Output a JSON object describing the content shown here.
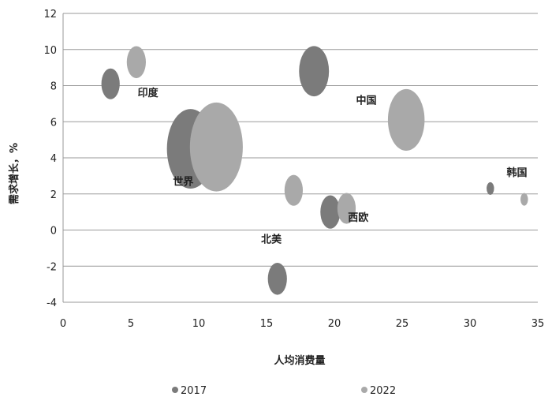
{
  "chart_data": {
    "type": "bubble",
    "xlabel": "人均消费量",
    "ylabel": "需求增长，%",
    "xlim": [
      0,
      35
    ],
    "ylim": [
      -4,
      12
    ],
    "xticks": [
      0,
      5,
      10,
      15,
      20,
      25,
      30,
      35
    ],
    "yticks": [
      -4,
      -2,
      0,
      2,
      4,
      6,
      8,
      10,
      12
    ],
    "grid": "horizontal",
    "legend_position": "bottom",
    "colors": {
      "2017": "#7b7b7b",
      "2022": "#a9a9a9"
    },
    "series": [
      {
        "name": "2017",
        "points": [
          {
            "x": 3.5,
            "y": 8.1,
            "size": 0.6
          },
          {
            "x": 9.4,
            "y": 4.5,
            "size": 4.0
          },
          {
            "x": 18.5,
            "y": 8.8,
            "size": 1.6
          },
          {
            "x": 19.7,
            "y": 1.0,
            "size": 0.7
          },
          {
            "x": 15.8,
            "y": -2.7,
            "size": 0.65
          },
          {
            "x": 31.5,
            "y": 2.3,
            "size": 0.1
          }
        ]
      },
      {
        "name": "2022",
        "points": [
          {
            "x": 5.4,
            "y": 9.3,
            "size": 0.65
          },
          {
            "x": 11.3,
            "y": 4.6,
            "size": 5.0
          },
          {
            "x": 25.3,
            "y": 6.1,
            "size": 2.4
          },
          {
            "x": 17.0,
            "y": 2.2,
            "size": 0.6
          },
          {
            "x": 20.9,
            "y": 1.2,
            "size": 0.6
          },
          {
            "x": 34.0,
            "y": 1.7,
            "size": 0.1
          }
        ]
      }
    ],
    "annotations": [
      {
        "text": "印度",
        "x": 5.5,
        "y": 7.4
      },
      {
        "text": "中国",
        "x": 21.6,
        "y": 7.0
      },
      {
        "text": "世界",
        "x": 8.1,
        "y": 2.5
      },
      {
        "text": "韩国",
        "x": 32.7,
        "y": 3.0
      },
      {
        "text": "西欧",
        "x": 21.0,
        "y": 0.5
      },
      {
        "text": "北美",
        "x": 14.6,
        "y": -0.7
      }
    ]
  }
}
